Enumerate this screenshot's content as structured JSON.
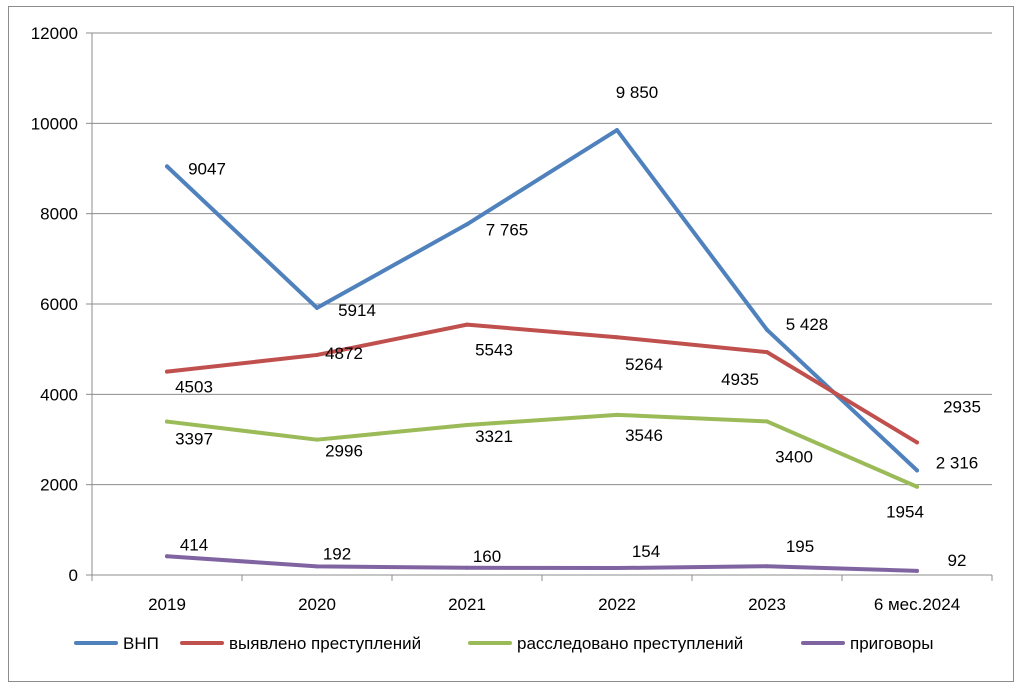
{
  "chart_data": {
    "type": "line",
    "categories": [
      "2019",
      "2020",
      "2021",
      "2022",
      "2023",
      "6 мес.2024"
    ],
    "ylim": [
      0,
      12000
    ],
    "yticks": [
      0,
      2000,
      4000,
      6000,
      8000,
      10000,
      12000
    ],
    "grid": true,
    "legend_position": "bottom",
    "series": [
      {
        "name": "ВНП",
        "color": "#4f81bd",
        "values": [
          9047,
          5914,
          7765,
          9850,
          5428,
          2316
        ],
        "labels": [
          "9047",
          "5914",
          "7 765",
          "9 850",
          "5 428",
          "2 316"
        ]
      },
      {
        "name": "выявлено преступлений",
        "color": "#c0504d",
        "values": [
          4503,
          4872,
          5543,
          5264,
          4935,
          2935
        ],
        "labels": [
          "4503",
          "4872",
          "5543",
          "5264",
          "4935",
          "2935"
        ]
      },
      {
        "name": "расследовано преступлений",
        "color": "#9bbb59",
        "values": [
          3397,
          2996,
          3321,
          3546,
          3400,
          1954
        ],
        "labels": [
          "3397",
          "2996",
          "3321",
          "3546",
          "3400",
          "1954"
        ]
      },
      {
        "name": "приговоры",
        "color": "#8064a2",
        "values": [
          414,
          192,
          160,
          154,
          195,
          92
        ],
        "labels": [
          "414",
          "192",
          "160",
          "154",
          "195",
          "92"
        ]
      }
    ]
  }
}
